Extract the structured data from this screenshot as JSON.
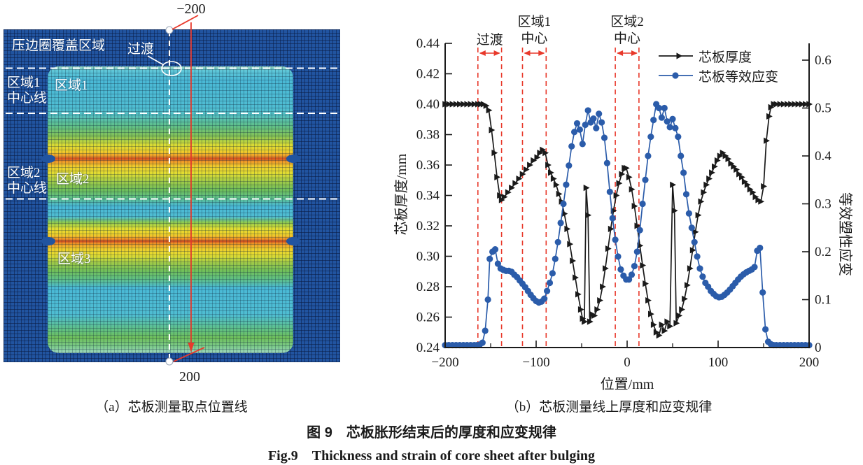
{
  "figure": {
    "caption_zh": "图 9　芯板胀形结束后的厚度和应变规律",
    "caption_en": "Fig.9　Thickness and strain of core sheet after bulging",
    "subcaption_a": "（a）芯板测量取点位置线",
    "subcaption_b": "（b）芯板测量线上厚度和应变规律"
  },
  "panel_a": {
    "labels": {
      "blank_holder": "压边圈覆盖区域",
      "transition": "过渡",
      "zone1_centerline": "区域1\n中心线",
      "zone1": "区域1",
      "zone2_centerline": "区域2\n中心线",
      "zone2": "区域2",
      "zone3": "区域3",
      "top_value": "−200",
      "bottom_value": "200"
    },
    "colors": {
      "background_blue": "#2154a0",
      "band_cyan": "#4ab9d6",
      "band_green": "#6fbf5a",
      "band_yellow": "#f0ce2b",
      "band_orange": "#ef9026",
      "band_red": "#d14a1e",
      "annotation_white": "#ffffff",
      "measure_line_red": "#e8392b"
    }
  },
  "chart_data": {
    "type": "line",
    "title": "",
    "xlabel": "位置/mm",
    "ylabel_left": "芯板厚度/mm",
    "ylabel_right": "等效塑性应变",
    "xlim": [
      -200,
      200
    ],
    "ylim_left": [
      0.24,
      0.44
    ],
    "ylim_right": [
      0,
      0.6
    ],
    "x_major_ticks": [
      -200,
      -100,
      0,
      100,
      200
    ],
    "x_minor_ticks": [
      -150,
      -50,
      50,
      150
    ],
    "y_left_ticks": [
      0.24,
      0.26,
      0.28,
      0.3,
      0.32,
      0.34,
      0.36,
      0.38,
      0.4,
      0.42,
      0.44
    ],
    "y_right_ticks": [
      0,
      0.1,
      0.2,
      0.3,
      0.4,
      0.5,
      0.6
    ],
    "grid": false,
    "zone_line_color": "#e8392b",
    "zones": [
      {
        "label": "过渡",
        "x1": -164,
        "x2": -138
      },
      {
        "label": "区域1\n中心",
        "x1": -115,
        "x2": -89
      },
      {
        "label": "区域2\n中心",
        "x1": -13,
        "x2": 13
      }
    ],
    "legend": {
      "position": "top-right",
      "items": [
        {
          "label": "芯板厚度",
          "color": "#1a1a1a",
          "marker": "triangle"
        },
        {
          "label": "芯板等效应变",
          "color": "#2b5caa",
          "marker": "circle"
        }
      ]
    },
    "series": [
      {
        "name": "芯板厚度",
        "axis": "left",
        "color": "#1a1a1a",
        "marker": "triangle",
        "points": [
          [
            -200,
            0.4
          ],
          [
            -196,
            0.4
          ],
          [
            -192,
            0.4
          ],
          [
            -188,
            0.4
          ],
          [
            -184,
            0.4
          ],
          [
            -180,
            0.4
          ],
          [
            -176,
            0.4
          ],
          [
            -172,
            0.4
          ],
          [
            -168,
            0.4
          ],
          [
            -164,
            0.4
          ],
          [
            -161,
            0.4
          ],
          [
            -158,
            0.4
          ],
          [
            -155,
            0.399
          ],
          [
            -152,
            0.396
          ],
          [
            -149,
            0.383
          ],
          [
            -146,
            0.368
          ],
          [
            -143,
            0.352
          ],
          [
            -140,
            0.34
          ],
          [
            -138,
            0.337
          ],
          [
            -135,
            0.339
          ],
          [
            -131,
            0.342
          ],
          [
            -127,
            0.345
          ],
          [
            -123,
            0.348
          ],
          [
            -119,
            0.351
          ],
          [
            -115,
            0.354
          ],
          [
            -111,
            0.357
          ],
          [
            -107,
            0.36
          ],
          [
            -103,
            0.363
          ],
          [
            -99,
            0.365
          ],
          [
            -96,
            0.368
          ],
          [
            -93,
            0.37
          ],
          [
            -90,
            0.368
          ],
          [
            -87,
            0.36
          ],
          [
            -84,
            0.355
          ],
          [
            -81,
            0.351
          ],
          [
            -78,
            0.347
          ],
          [
            -75,
            0.341
          ],
          [
            -72,
            0.336
          ],
          [
            -69,
            0.328
          ],
          [
            -66,
            0.318
          ],
          [
            -63,
            0.308
          ],
          [
            -60,
            0.297
          ],
          [
            -57,
            0.286
          ],
          [
            -54,
            0.275
          ],
          [
            -51,
            0.265
          ],
          [
            -49,
            0.259
          ],
          [
            -47,
            0.257
          ],
          [
            -45,
            0.345
          ],
          [
            -43,
            0.327
          ],
          [
            -41,
            0.257
          ],
          [
            -39,
            0.262
          ],
          [
            -36,
            0.261
          ],
          [
            -33,
            0.265
          ],
          [
            -30,
            0.271
          ],
          [
            -27,
            0.28
          ],
          [
            -24,
            0.292
          ],
          [
            -21,
            0.305
          ],
          [
            -18,
            0.318
          ],
          [
            -15,
            0.33
          ],
          [
            -12,
            0.34
          ],
          [
            -9,
            0.348
          ],
          [
            -6,
            0.354
          ],
          [
            -3,
            0.358
          ],
          [
            -1,
            0.358
          ],
          [
            2,
            0.352
          ],
          [
            5,
            0.344
          ],
          [
            8,
            0.333
          ],
          [
            11,
            0.32
          ],
          [
            14,
            0.307
          ],
          [
            17,
            0.294
          ],
          [
            20,
            0.282
          ],
          [
            23,
            0.271
          ],
          [
            26,
            0.262
          ],
          [
            29,
            0.255
          ],
          [
            32,
            0.25
          ],
          [
            35,
            0.248
          ],
          [
            38,
            0.255
          ],
          [
            41,
            0.251
          ],
          [
            44,
            0.257
          ],
          [
            47,
            0.254
          ],
          [
            50,
            0.347
          ],
          [
            52,
            0.33
          ],
          [
            54,
            0.256
          ],
          [
            57,
            0.261
          ],
          [
            60,
            0.265
          ],
          [
            63,
            0.272
          ],
          [
            66,
            0.281
          ],
          [
            69,
            0.292
          ],
          [
            72,
            0.304
          ],
          [
            75,
            0.316
          ],
          [
            78,
            0.327
          ],
          [
            81,
            0.336
          ],
          [
            84,
            0.342
          ],
          [
            87,
            0.347
          ],
          [
            90,
            0.351
          ],
          [
            93,
            0.355
          ],
          [
            96,
            0.359
          ],
          [
            99,
            0.363
          ],
          [
            102,
            0.366
          ],
          [
            105,
            0.368
          ],
          [
            108,
            0.366
          ],
          [
            111,
            0.364
          ],
          [
            114,
            0.361
          ],
          [
            117,
            0.359
          ],
          [
            120,
            0.357
          ],
          [
            123,
            0.354
          ],
          [
            126,
            0.352
          ],
          [
            129,
            0.349
          ],
          [
            132,
            0.347
          ],
          [
            135,
            0.344
          ],
          [
            138,
            0.342
          ],
          [
            141,
            0.339
          ],
          [
            144,
            0.337
          ],
          [
            147,
            0.336
          ],
          [
            150,
            0.346
          ],
          [
            153,
            0.376
          ],
          [
            156,
            0.392
          ],
          [
            158,
            0.398
          ],
          [
            161,
            0.4
          ],
          [
            164,
            0.4
          ],
          [
            168,
            0.4
          ],
          [
            172,
            0.4
          ],
          [
            176,
            0.4
          ],
          [
            180,
            0.4
          ],
          [
            184,
            0.4
          ],
          [
            188,
            0.4
          ],
          [
            192,
            0.4
          ],
          [
            196,
            0.4
          ],
          [
            200,
            0.4
          ]
        ]
      },
      {
        "name": "芯板等效应变",
        "axis": "right",
        "color": "#2b5caa",
        "marker": "circle",
        "points": [
          [
            -200,
            0.005
          ],
          [
            -196,
            0.005
          ],
          [
            -192,
            0.005
          ],
          [
            -188,
            0.005
          ],
          [
            -184,
            0.005
          ],
          [
            -180,
            0.005
          ],
          [
            -176,
            0.005
          ],
          [
            -172,
            0.005
          ],
          [
            -168,
            0.005
          ],
          [
            -165,
            0.005
          ],
          [
            -162,
            0.006
          ],
          [
            -159,
            0.01
          ],
          [
            -156,
            0.035
          ],
          [
            -153,
            0.1
          ],
          [
            -151,
            0.185
          ],
          [
            -148,
            0.2
          ],
          [
            -145,
            0.205
          ],
          [
            -142,
            0.175
          ],
          [
            -139,
            0.165
          ],
          [
            -136,
            0.162
          ],
          [
            -133,
            0.16
          ],
          [
            -130,
            0.16
          ],
          [
            -127,
            0.158
          ],
          [
            -124,
            0.152
          ],
          [
            -121,
            0.147
          ],
          [
            -118,
            0.14
          ],
          [
            -115,
            0.133
          ],
          [
            -112,
            0.126
          ],
          [
            -109,
            0.118
          ],
          [
            -106,
            0.11
          ],
          [
            -103,
            0.103
          ],
          [
            -100,
            0.097
          ],
          [
            -97,
            0.094
          ],
          [
            -94,
            0.096
          ],
          [
            -91,
            0.102
          ],
          [
            -88,
            0.118
          ],
          [
            -85,
            0.135
          ],
          [
            -82,
            0.155
          ],
          [
            -79,
            0.185
          ],
          [
            -76,
            0.22
          ],
          [
            -73,
            0.26
          ],
          [
            -70,
            0.3
          ],
          [
            -67,
            0.34
          ],
          [
            -64,
            0.38
          ],
          [
            -61,
            0.42
          ],
          [
            -58,
            0.45
          ],
          [
            -55,
            0.468
          ],
          [
            -52,
            0.455
          ],
          [
            -49,
            0.425
          ],
          [
            -46,
            0.465
          ],
          [
            -43,
            0.495
          ],
          [
            -40,
            0.47
          ],
          [
            -37,
            0.478
          ],
          [
            -34,
            0.458
          ],
          [
            -31,
            0.488
          ],
          [
            -28,
            0.47
          ],
          [
            -25,
            0.438
          ],
          [
            -22,
            0.385
          ],
          [
            -19,
            0.325
          ],
          [
            -16,
            0.27
          ],
          [
            -13,
            0.225
          ],
          [
            -10,
            0.19
          ],
          [
            -7,
            0.163
          ],
          [
            -4,
            0.15
          ],
          [
            -1,
            0.142
          ],
          [
            2,
            0.142
          ],
          [
            5,
            0.152
          ],
          [
            8,
            0.17
          ],
          [
            11,
            0.2
          ],
          [
            14,
            0.245
          ],
          [
            17,
            0.3
          ],
          [
            20,
            0.35
          ],
          [
            23,
            0.4
          ],
          [
            26,
            0.44
          ],
          [
            29,
            0.475
          ],
          [
            32,
            0.508
          ],
          [
            35,
            0.5
          ],
          [
            38,
            0.48
          ],
          [
            41,
            0.5
          ],
          [
            44,
            0.472
          ],
          [
            47,
            0.46
          ],
          [
            50,
            0.477
          ],
          [
            53,
            0.458
          ],
          [
            56,
            0.44
          ],
          [
            59,
            0.4
          ],
          [
            62,
            0.365
          ],
          [
            65,
            0.32
          ],
          [
            68,
            0.28
          ],
          [
            71,
            0.25
          ],
          [
            74,
            0.22
          ],
          [
            77,
            0.19
          ],
          [
            80,
            0.165
          ],
          [
            83,
            0.148
          ],
          [
            86,
            0.135
          ],
          [
            89,
            0.127
          ],
          [
            92,
            0.118
          ],
          [
            95,
            0.112
          ],
          [
            98,
            0.107
          ],
          [
            101,
            0.105
          ],
          [
            104,
            0.106
          ],
          [
            107,
            0.11
          ],
          [
            110,
            0.115
          ],
          [
            113,
            0.121
          ],
          [
            116,
            0.128
          ],
          [
            119,
            0.135
          ],
          [
            122,
            0.142
          ],
          [
            125,
            0.148
          ],
          [
            128,
            0.153
          ],
          [
            131,
            0.157
          ],
          [
            134,
            0.16
          ],
          [
            137,
            0.163
          ],
          [
            140,
            0.168
          ],
          [
            143,
            0.202
          ],
          [
            146,
            0.208
          ],
          [
            149,
            0.115
          ],
          [
            152,
            0.038
          ],
          [
            155,
            0.012
          ],
          [
            158,
            0.007
          ],
          [
            161,
            0.005
          ],
          [
            164,
            0.005
          ],
          [
            168,
            0.005
          ],
          [
            172,
            0.005
          ],
          [
            176,
            0.005
          ],
          [
            180,
            0.005
          ],
          [
            184,
            0.005
          ],
          [
            188,
            0.005
          ],
          [
            192,
            0.005
          ],
          [
            196,
            0.005
          ],
          [
            200,
            0.005
          ]
        ]
      }
    ]
  }
}
